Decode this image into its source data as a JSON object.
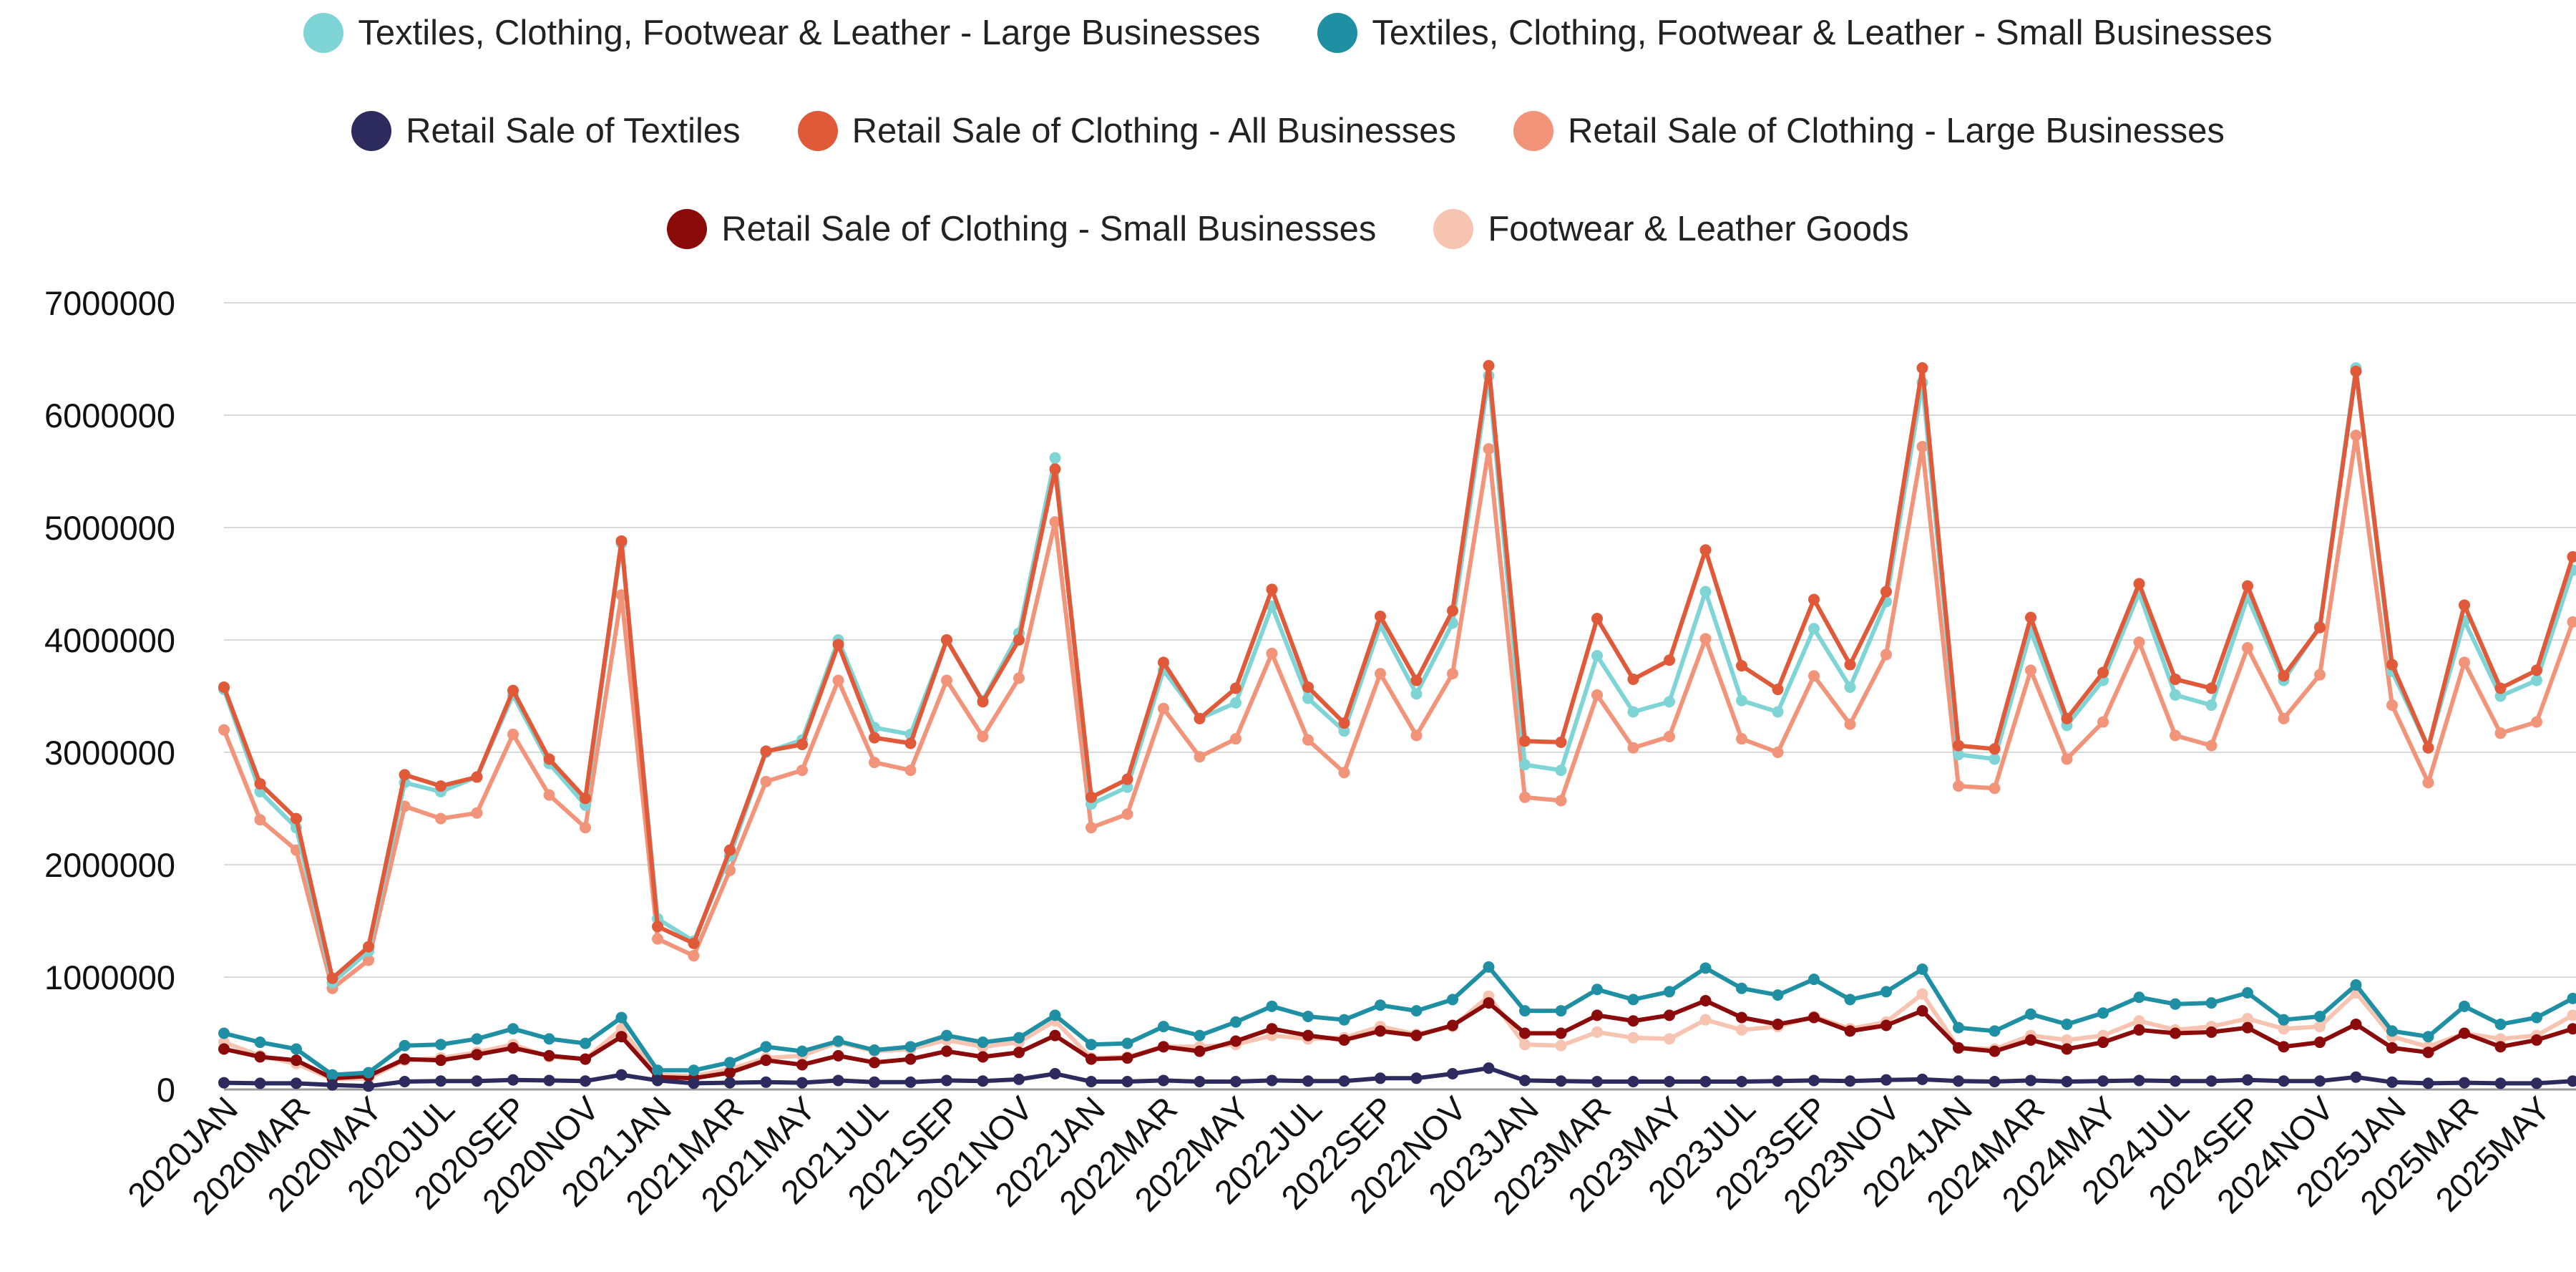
{
  "chart_data": {
    "type": "line",
    "title": "",
    "xlabel": "",
    "ylabel": "",
    "ylim": [
      0,
      7000000
    ],
    "yticks": [
      0,
      1000000,
      2000000,
      3000000,
      4000000,
      5000000,
      6000000,
      7000000
    ],
    "ytick_labels": [
      "0",
      "1000000",
      "2000000",
      "3000000",
      "4000000",
      "5000000",
      "6000000",
      "7000000"
    ],
    "grid": "horizontal",
    "legend_position": "top",
    "x": [
      "2020JAN",
      "2020FEB",
      "2020MAR",
      "2020APR",
      "2020MAY",
      "2020JUN",
      "2020JUL",
      "2020AUG",
      "2020SEP",
      "2020OCT",
      "2020NOV",
      "2020DEC",
      "2021JAN",
      "2021FEB",
      "2021MAR",
      "2021APR",
      "2021MAY",
      "2021JUN",
      "2021JUL",
      "2021AUG",
      "2021SEP",
      "2021OCT",
      "2021NOV",
      "2021DEC",
      "2022JAN",
      "2022FEB",
      "2022MAR",
      "2022APR",
      "2022MAY",
      "2022JUN",
      "2022JUL",
      "2022AUG",
      "2022SEP",
      "2022OCT",
      "2022NOV",
      "2022DEC",
      "2023JAN",
      "2023FEB",
      "2023MAR",
      "2023APR",
      "2023MAY",
      "2023JUN",
      "2023JUL",
      "2023AUG",
      "2023SEP",
      "2023OCT",
      "2023NOV",
      "2023DEC",
      "2024JAN",
      "2024FEB",
      "2024MAR",
      "2024APR",
      "2024MAY",
      "2024JUN",
      "2024JUL",
      "2024AUG",
      "2024SEP",
      "2024OCT",
      "2024NOV",
      "2024DEC",
      "2025JAN",
      "2025FEB",
      "2025MAR",
      "2025APR",
      "2025MAY",
      "2025JUN"
    ],
    "x_tick_labels": [
      "2020JAN",
      "2020MAR",
      "2020MAY",
      "2020JUL",
      "2020SEP",
      "2020NOV",
      "2021JAN",
      "2021MAR",
      "2021MAY",
      "2021JUL",
      "2021SEP",
      "2021NOV",
      "2022JAN",
      "2022MAR",
      "2022MAY",
      "2022JUL",
      "2022SEP",
      "2022NOV",
      "2023JAN",
      "2023MAR",
      "2023MAY",
      "2023JUL",
      "2023SEP",
      "2023NOV",
      "2024JAN",
      "2024MAR",
      "2024MAY",
      "2024JUL",
      "2024SEP",
      "2024NOV",
      "2025JAN",
      "2025MAR",
      "2025MAY"
    ],
    "series": [
      {
        "name": "Retail Sale of Clothing - Large Businesses",
        "color": "#f2947a",
        "values": [
          3200000,
          2400000,
          2130000,
          900000,
          1150000,
          2520000,
          2410000,
          2460000,
          3160000,
          2620000,
          2330000,
          4400000,
          1340000,
          1190000,
          1950000,
          2740000,
          2840000,
          3640000,
          2910000,
          2840000,
          3640000,
          3140000,
          3660000,
          5050000,
          2330000,
          2450000,
          3390000,
          2960000,
          3120000,
          3880000,
          3110000,
          2820000,
          3700000,
          3150000,
          3700000,
          5700000,
          2600000,
          2570000,
          3510000,
          3040000,
          3140000,
          4010000,
          3120000,
          3000000,
          3680000,
          3250000,
          3870000,
          5720000,
          2700000,
          2680000,
          3730000,
          2940000,
          3270000,
          3980000,
          3150000,
          3060000,
          3930000,
          3300000,
          3690000,
          5820000,
          3420000,
          2730000,
          3800000,
          3170000,
          3270000,
          4160000
        ]
      },
      {
        "name": "Footwear & Leather Goods",
        "color": "#f8c4b2",
        "values": [
          420000,
          300000,
          230000,
          90000,
          100000,
          260000,
          280000,
          330000,
          400000,
          290000,
          270000,
          540000,
          130000,
          120000,
          180000,
          280000,
          300000,
          420000,
          340000,
          360000,
          440000,
          380000,
          420000,
          610000,
          280000,
          290000,
          380000,
          380000,
          400000,
          480000,
          450000,
          460000,
          560000,
          490000,
          560000,
          830000,
          400000,
          390000,
          510000,
          460000,
          450000,
          620000,
          530000,
          560000,
          650000,
          540000,
          600000,
          850000,
          370000,
          360000,
          480000,
          440000,
          480000,
          610000,
          530000,
          560000,
          630000,
          540000,
          560000,
          860000,
          470000,
          380000,
          500000,
          450000,
          480000,
          660000
        ]
      },
      {
        "name": "Retail Sale of Clothing - Small Businesses",
        "color": "#8b0a0a",
        "values": [
          360000,
          290000,
          260000,
          100000,
          120000,
          270000,
          260000,
          310000,
          370000,
          300000,
          270000,
          470000,
          110000,
          100000,
          150000,
          260000,
          220000,
          300000,
          240000,
          270000,
          340000,
          290000,
          330000,
          480000,
          270000,
          280000,
          380000,
          340000,
          430000,
          540000,
          480000,
          440000,
          520000,
          480000,
          570000,
          770000,
          500000,
          500000,
          660000,
          610000,
          660000,
          790000,
          640000,
          580000,
          640000,
          520000,
          570000,
          700000,
          370000,
          340000,
          440000,
          360000,
          420000,
          530000,
          500000,
          510000,
          550000,
          380000,
          420000,
          580000,
          370000,
          330000,
          500000,
          380000,
          440000,
          540000
        ]
      },
      {
        "name": "Textiles, Clothing, Footwear & Leather - Small Businesses",
        "color": "#1f8fa3",
        "values": [
          500000,
          420000,
          360000,
          130000,
          150000,
          390000,
          400000,
          450000,
          540000,
          450000,
          410000,
          640000,
          170000,
          170000,
          240000,
          380000,
          340000,
          430000,
          350000,
          380000,
          480000,
          420000,
          460000,
          660000,
          400000,
          410000,
          560000,
          480000,
          600000,
          740000,
          650000,
          620000,
          750000,
          700000,
          800000,
          1090000,
          700000,
          700000,
          890000,
          800000,
          870000,
          1080000,
          900000,
          840000,
          980000,
          800000,
          870000,
          1070000,
          550000,
          520000,
          670000,
          580000,
          680000,
          820000,
          760000,
          770000,
          860000,
          620000,
          650000,
          930000,
          520000,
          470000,
          740000,
          580000,
          640000,
          810000
        ]
      },
      {
        "name": "Textiles, Clothing, Footwear & Leather - Large Businesses",
        "color": "#7fd4d6",
        "values": [
          3560000,
          2650000,
          2330000,
          950000,
          1230000,
          2730000,
          2650000,
          2780000,
          3510000,
          2900000,
          2530000,
          4860000,
          1520000,
          1320000,
          2080000,
          3000000,
          3110000,
          4000000,
          3220000,
          3160000,
          4000000,
          3460000,
          4060000,
          5620000,
          2540000,
          2690000,
          3730000,
          3300000,
          3440000,
          4300000,
          3480000,
          3190000,
          4130000,
          3520000,
          4150000,
          6350000,
          2890000,
          2840000,
          3860000,
          3360000,
          3450000,
          4430000,
          3460000,
          3360000,
          4100000,
          3580000,
          4340000,
          6290000,
          2980000,
          2940000,
          4080000,
          3240000,
          3640000,
          4420000,
          3510000,
          3420000,
          4380000,
          3640000,
          4120000,
          6420000,
          3720000,
          3040000,
          4170000,
          3500000,
          3640000,
          4620000
        ]
      },
      {
        "name": "Retail Sale of Clothing - All Businesses",
        "color": "#e05a3a",
        "values": [
          3580000,
          2720000,
          2410000,
          990000,
          1270000,
          2800000,
          2700000,
          2780000,
          3550000,
          2940000,
          2590000,
          4880000,
          1450000,
          1300000,
          2130000,
          3010000,
          3070000,
          3960000,
          3130000,
          3080000,
          4000000,
          3450000,
          4000000,
          5520000,
          2600000,
          2760000,
          3800000,
          3300000,
          3570000,
          4450000,
          3580000,
          3260000,
          4210000,
          3640000,
          4260000,
          6440000,
          3100000,
          3090000,
          4190000,
          3650000,
          3820000,
          4800000,
          3770000,
          3560000,
          4360000,
          3780000,
          4430000,
          6420000,
          3060000,
          3030000,
          4200000,
          3300000,
          3710000,
          4500000,
          3650000,
          3570000,
          4480000,
          3680000,
          4110000,
          6390000,
          3780000,
          3040000,
          4310000,
          3570000,
          3730000,
          4740000
        ]
      },
      {
        "name": "Retail Sale of Textiles",
        "color": "#2d2b5e",
        "values": [
          60000,
          55000,
          55000,
          40000,
          30000,
          70000,
          75000,
          75000,
          85000,
          80000,
          75000,
          130000,
          80000,
          55000,
          60000,
          65000,
          60000,
          80000,
          65000,
          65000,
          80000,
          75000,
          90000,
          140000,
          70000,
          70000,
          80000,
          70000,
          70000,
          80000,
          75000,
          75000,
          100000,
          100000,
          140000,
          190000,
          80000,
          75000,
          70000,
          70000,
          70000,
          70000,
          70000,
          75000,
          80000,
          75000,
          85000,
          90000,
          75000,
          70000,
          80000,
          70000,
          75000,
          80000,
          75000,
          75000,
          85000,
          75000,
          75000,
          110000,
          65000,
          55000,
          60000,
          55000,
          55000,
          75000
        ]
      }
    ]
  },
  "legend": {
    "rows": [
      [
        {
          "label": "Textiles, Clothing, Footwear & Leather - Large Businesses",
          "color": "#7fd4d6"
        },
        {
          "label": "Textiles, Clothing, Footwear & Leather - Small Businesses",
          "color": "#1f8fa3"
        }
      ],
      [
        {
          "label": "Retail Sale of Textiles",
          "color": "#2d2b5e"
        },
        {
          "label": "Retail Sale of Clothing - All Businesses",
          "color": "#e05a3a"
        },
        {
          "label": "Retail Sale of Clothing - Large Businesses",
          "color": "#f2947a"
        }
      ],
      [
        {
          "label": "Retail Sale of Clothing - Small Businesses",
          "color": "#8b0a0a"
        },
        {
          "label": "Footwear & Leather Goods",
          "color": "#f8c4b2"
        }
      ]
    ]
  }
}
